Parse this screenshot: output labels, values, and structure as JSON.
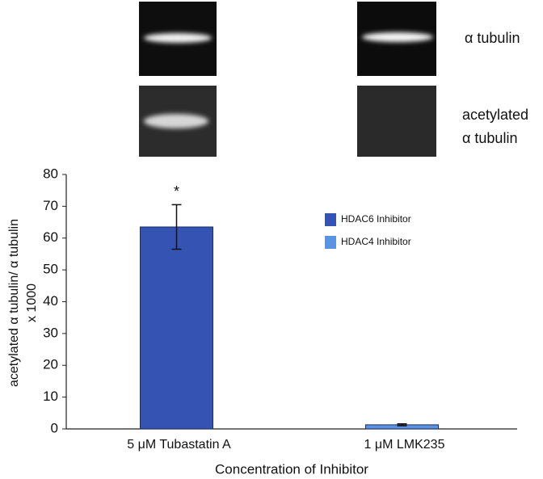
{
  "blot_labels": [
    [
      "α tubulin"
    ],
    [
      "acetylated",
      "α tubulin"
    ]
  ],
  "chart_data": {
    "type": "bar",
    "categories": [
      "5 μM Tubastatin A",
      "1 μM LMK235"
    ],
    "series": [
      {
        "name": "HDAC6 Inhibitor",
        "color": "#3553b3",
        "values": [
          63.5,
          null
        ],
        "errors": [
          7,
          null
        ]
      },
      {
        "name": "HDAC4 Inhibitor",
        "color": "#5a93e3",
        "values": [
          null,
          1.3
        ],
        "errors": [
          null,
          0.3
        ]
      }
    ],
    "annotation": "*",
    "ylim": [
      0,
      80
    ],
    "yticks": [
      0,
      10,
      20,
      30,
      40,
      50,
      60,
      70,
      80
    ],
    "y_label": [
      "acetylated α tubulin/ α tubulin",
      "x 1000"
    ],
    "x_label": "Concentration of Inhibitor",
    "legend": "upper-right",
    "grid": false
  }
}
